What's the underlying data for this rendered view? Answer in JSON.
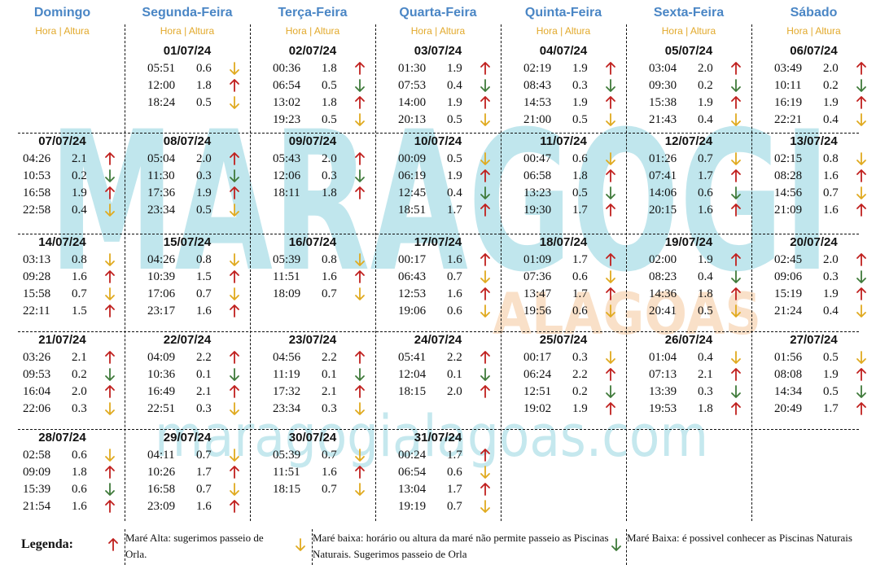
{
  "header": {
    "days": [
      "Domingo",
      "Segunda-Feira",
      "Terça-Feira",
      "Quarta-Feira",
      "Quinta-Feira",
      "Sexta-Feira",
      "Sábado"
    ],
    "subheader": "Hora | Altura"
  },
  "colors": {
    "up": "#c0201e",
    "down_yellow": "#e0aa1f",
    "down_green": "#3f7a3a",
    "header_blue": "#4a86c5",
    "header_orange": "#e2a92b"
  },
  "watermark": {
    "big": "MARAGOGI",
    "small": "ALAGOAS",
    "url": "maragogialagoas.com"
  },
  "weeks": [
    [
      null,
      {
        "date": "01/07/24",
        "tides": [
          [
            "05:51",
            "0.6",
            "y"
          ],
          [
            "12:00",
            "1.8",
            "u"
          ],
          [
            "18:24",
            "0.5",
            "y"
          ]
        ]
      },
      {
        "date": "02/07/24",
        "tides": [
          [
            "00:36",
            "1.8",
            "u"
          ],
          [
            "06:54",
            "0.5",
            "g"
          ],
          [
            "13:02",
            "1.8",
            "u"
          ],
          [
            "19:23",
            "0.5",
            "y"
          ]
        ]
      },
      {
        "date": "03/07/24",
        "tides": [
          [
            "01:30",
            "1.9",
            "u"
          ],
          [
            "07:53",
            "0.4",
            "g"
          ],
          [
            "14:00",
            "1.9",
            "u"
          ],
          [
            "20:13",
            "0.5",
            "y"
          ]
        ]
      },
      {
        "date": "04/07/24",
        "tides": [
          [
            "02:19",
            "1.9",
            "u"
          ],
          [
            "08:43",
            "0.3",
            "g"
          ],
          [
            "14:53",
            "1.9",
            "u"
          ],
          [
            "21:00",
            "0.5",
            "y"
          ]
        ]
      },
      {
        "date": "05/07/24",
        "tides": [
          [
            "03:04",
            "2.0",
            "u"
          ],
          [
            "09:30",
            "0.2",
            "g"
          ],
          [
            "15:38",
            "1.9",
            "u"
          ],
          [
            "21:43",
            "0.4",
            "y"
          ]
        ]
      },
      {
        "date": "06/07/24",
        "tides": [
          [
            "03:49",
            "2.0",
            "u"
          ],
          [
            "10:11",
            "0.2",
            "g"
          ],
          [
            "16:19",
            "1.9",
            "u"
          ],
          [
            "22:21",
            "0.4",
            "y"
          ]
        ]
      }
    ],
    [
      {
        "date": "07/07/24",
        "tides": [
          [
            "04:26",
            "2.1",
            "u"
          ],
          [
            "10:53",
            "0.2",
            "g"
          ],
          [
            "16:58",
            "1.9",
            "u"
          ],
          [
            "22:58",
            "0.4",
            "y"
          ]
        ]
      },
      {
        "date": "08/07/24",
        "tides": [
          [
            "05:04",
            "2.0",
            "u"
          ],
          [
            "11:30",
            "0.3",
            "g"
          ],
          [
            "17:36",
            "1.9",
            "u"
          ],
          [
            "23:34",
            "0.5",
            "y"
          ]
        ]
      },
      {
        "date": "09/07/24",
        "tides": [
          [
            "05:43",
            "2.0",
            "u"
          ],
          [
            "12:06",
            "0.3",
            "g"
          ],
          [
            "18:11",
            "1.8",
            "u"
          ]
        ]
      },
      {
        "date": "10/07/24",
        "tides": [
          [
            "00:09",
            "0.5",
            "y"
          ],
          [
            "06:19",
            "1.9",
            "u"
          ],
          [
            "12:45",
            "0.4",
            "g"
          ],
          [
            "18:51",
            "1.7",
            "u"
          ]
        ]
      },
      {
        "date": "11/07/24",
        "tides": [
          [
            "00:47",
            "0.6",
            "y"
          ],
          [
            "06:58",
            "1.8",
            "u"
          ],
          [
            "13:23",
            "0.5",
            "g"
          ],
          [
            "19:30",
            "1.7",
            "u"
          ]
        ]
      },
      {
        "date": "12/07/24",
        "tides": [
          [
            "01:26",
            "0.7",
            "y"
          ],
          [
            "07:41",
            "1.7",
            "u"
          ],
          [
            "14:06",
            "0.6",
            "g"
          ],
          [
            "20:15",
            "1.6",
            "u"
          ]
        ]
      },
      {
        "date": "13/07/24",
        "tides": [
          [
            "02:15",
            "0.8",
            "y"
          ],
          [
            "08:28",
            "1.6",
            "u"
          ],
          [
            "14:56",
            "0.7",
            "y"
          ],
          [
            "21:09",
            "1.6",
            "u"
          ]
        ]
      }
    ],
    [
      {
        "date": "14/07/24",
        "tides": [
          [
            "03:13",
            "0.8",
            "y"
          ],
          [
            "09:28",
            "1.6",
            "u"
          ],
          [
            "15:58",
            "0.7",
            "y"
          ],
          [
            "22:11",
            "1.5",
            "u"
          ]
        ]
      },
      {
        "date": "15/07/24",
        "tides": [
          [
            "04:26",
            "0.8",
            "y"
          ],
          [
            "10:39",
            "1.5",
            "u"
          ],
          [
            "17:06",
            "0.7",
            "y"
          ],
          [
            "23:17",
            "1.6",
            "u"
          ]
        ]
      },
      {
        "date": "16/07/24",
        "tides": [
          [
            "05:39",
            "0.8",
            "y"
          ],
          [
            "11:51",
            "1.6",
            "u"
          ],
          [
            "18:09",
            "0.7",
            "y"
          ]
        ]
      },
      {
        "date": "17/07/24",
        "tides": [
          [
            "00:17",
            "1.6",
            "u"
          ],
          [
            "06:43",
            "0.7",
            "y"
          ],
          [
            "12:53",
            "1.6",
            "u"
          ],
          [
            "19:06",
            "0.6",
            "y"
          ]
        ]
      },
      {
        "date": "18/07/24",
        "tides": [
          [
            "01:09",
            "1.7",
            "u"
          ],
          [
            "07:36",
            "0.6",
            "y"
          ],
          [
            "13:47",
            "1.7",
            "u"
          ],
          [
            "19:56",
            "0.6",
            "y"
          ]
        ]
      },
      {
        "date": "19/07/24",
        "tides": [
          [
            "02:00",
            "1.9",
            "u"
          ],
          [
            "08:23",
            "0.4",
            "g"
          ],
          [
            "14:36",
            "1.8",
            "u"
          ],
          [
            "20:41",
            "0.5",
            "y"
          ]
        ]
      },
      {
        "date": "20/07/24",
        "tides": [
          [
            "02:45",
            "2.0",
            "u"
          ],
          [
            "09:06",
            "0.3",
            "g"
          ],
          [
            "15:19",
            "1.9",
            "u"
          ],
          [
            "21:24",
            "0.4",
            "y"
          ]
        ]
      }
    ],
    [
      {
        "date": "21/07/24",
        "tides": [
          [
            "03:26",
            "2.1",
            "u"
          ],
          [
            "09:53",
            "0.2",
            "g"
          ],
          [
            "16:04",
            "2.0",
            "u"
          ],
          [
            "22:06",
            "0.3",
            "y"
          ]
        ]
      },
      {
        "date": "22/07/24",
        "tides": [
          [
            "04:09",
            "2.2",
            "u"
          ],
          [
            "10:36",
            "0.1",
            "g"
          ],
          [
            "16:49",
            "2.1",
            "u"
          ],
          [
            "22:51",
            "0.3",
            "y"
          ]
        ]
      },
      {
        "date": "23/07/24",
        "tides": [
          [
            "04:56",
            "2.2",
            "u"
          ],
          [
            "11:19",
            "0.1",
            "g"
          ],
          [
            "17:32",
            "2.1",
            "u"
          ],
          [
            "23:34",
            "0.3",
            "y"
          ]
        ]
      },
      {
        "date": "24/07/24",
        "tides": [
          [
            "05:41",
            "2.2",
            "u"
          ],
          [
            "12:04",
            "0.1",
            "g"
          ],
          [
            "18:15",
            "2.0",
            "u"
          ]
        ]
      },
      {
        "date": "25/07/24",
        "tides": [
          [
            "00:17",
            "0.3",
            "y"
          ],
          [
            "06:24",
            "2.2",
            "u"
          ],
          [
            "12:51",
            "0.2",
            "g"
          ],
          [
            "19:02",
            "1.9",
            "u"
          ]
        ]
      },
      {
        "date": "26/07/24",
        "tides": [
          [
            "01:04",
            "0.4",
            "y"
          ],
          [
            "07:13",
            "2.1",
            "u"
          ],
          [
            "13:39",
            "0.3",
            "g"
          ],
          [
            "19:53",
            "1.8",
            "u"
          ]
        ]
      },
      {
        "date": "27/07/24",
        "tides": [
          [
            "01:56",
            "0.5",
            "y"
          ],
          [
            "08:08",
            "1.9",
            "u"
          ],
          [
            "14:34",
            "0.5",
            "g"
          ],
          [
            "20:49",
            "1.7",
            "u"
          ]
        ]
      }
    ],
    [
      {
        "date": "28/07/24",
        "tides": [
          [
            "02:58",
            "0.6",
            "y"
          ],
          [
            "09:09",
            "1.8",
            "u"
          ],
          [
            "15:39",
            "0.6",
            "g"
          ],
          [
            "21:54",
            "1.6",
            "u"
          ]
        ]
      },
      {
        "date": "29/07/24",
        "tides": [
          [
            "04:11",
            "0.7",
            "y"
          ],
          [
            "10:26",
            "1.7",
            "u"
          ],
          [
            "16:58",
            "0.7",
            "y"
          ],
          [
            "23:09",
            "1.6",
            "u"
          ]
        ]
      },
      {
        "date": "30/07/24",
        "tides": [
          [
            "05:39",
            "0.7",
            "y"
          ],
          [
            "11:51",
            "1.6",
            "u"
          ],
          [
            "18:15",
            "0.7",
            "y"
          ]
        ]
      },
      {
        "date": "31/07/24",
        "tides": [
          [
            "00:24",
            "1.7",
            "u"
          ],
          [
            "06:54",
            "0.6",
            "y"
          ],
          [
            "13:04",
            "1.7",
            "u"
          ],
          [
            "19:19",
            "0.7",
            "y"
          ]
        ]
      },
      null,
      null,
      null
    ]
  ],
  "legend": {
    "title": "Legenda:",
    "items": [
      {
        "arrow": "u",
        "text": "Maré Alta: sugerimos passeio de Orla."
      },
      {
        "arrow": "y",
        "text": "Maré baixa: horário ou altura da maré não permite passeio as Piscinas Naturais. Sugerimos passeio de Orla"
      },
      {
        "arrow": "g",
        "text": "Maré Baixa: é possivel conhecer as Piscinas Naturais"
      }
    ]
  }
}
